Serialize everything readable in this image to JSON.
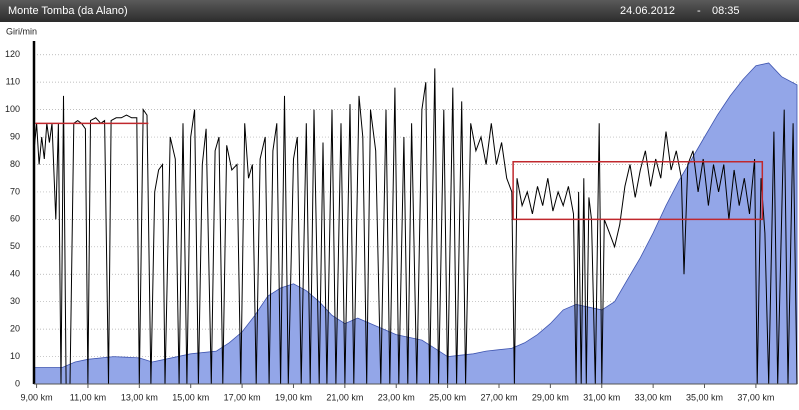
{
  "header": {
    "title": "Monte Tomba (da Alano)",
    "date": "24.06.2012",
    "separator": "-",
    "time": "08:35"
  },
  "chart_data": {
    "type": "line",
    "y_label": "Giri/min",
    "xlim": [
      8.9,
      38.6
    ],
    "ylim": [
      0,
      125
    ],
    "grid": true,
    "yticks": [
      0,
      10,
      20,
      30,
      40,
      50,
      60,
      70,
      80,
      90,
      100,
      110,
      120
    ],
    "xticks": [
      {
        "value": 9,
        "label": "9,00 km"
      },
      {
        "value": 11,
        "label": "11,00 km"
      },
      {
        "value": 13,
        "label": "13,00 km"
      },
      {
        "value": 15,
        "label": "15,00 km"
      },
      {
        "value": 17,
        "label": "17,00 km"
      },
      {
        "value": 19,
        "label": "19,00 km"
      },
      {
        "value": 21,
        "label": "21,00 km"
      },
      {
        "value": 23,
        "label": "23,00 km"
      },
      {
        "value": 25,
        "label": "25,00 km"
      },
      {
        "value": 27,
        "label": "27,00 km"
      },
      {
        "value": 29,
        "label": "29,00 km"
      },
      {
        "value": 31,
        "label": "31,00 km"
      },
      {
        "value": 33,
        "label": "33,00 km"
      },
      {
        "value": 35,
        "label": "35,00 km"
      },
      {
        "value": 37,
        "label": "37,00 km"
      }
    ],
    "series": [
      {
        "type": "area",
        "color": "#93a6e8",
        "stroke": "#3f55b0",
        "x": [
          8.9,
          10,
          10.5,
          11,
          12,
          13,
          13.5,
          14,
          15,
          16,
          16.5,
          17,
          17.5,
          18,
          18.5,
          19,
          19.5,
          20,
          20.5,
          21,
          21.5,
          22,
          22.5,
          23,
          23.5,
          24,
          24.5,
          25,
          25.5,
          26,
          26.5,
          27,
          27.5,
          28,
          28.5,
          29,
          29.5,
          30,
          30.5,
          31,
          31.5,
          32,
          32.5,
          33,
          33.5,
          34,
          34.5,
          35,
          35.5,
          36,
          36.5,
          37,
          37.5,
          38,
          38.6
        ],
        "values": [
          6,
          6,
          8,
          9,
          10,
          9.5,
          8,
          9,
          11,
          12,
          15,
          19,
          25,
          32,
          35,
          36.5,
          34,
          30,
          25,
          22,
          24,
          22,
          20,
          18,
          17,
          16,
          13,
          10,
          10.5,
          11,
          12,
          12.5,
          13,
          15,
          18,
          22,
          27,
          29,
          28,
          27,
          30,
          38,
          46,
          55,
          65,
          74,
          82,
          90,
          98,
          105,
          111,
          116,
          117,
          112,
          109
        ]
      },
      {
        "type": "line",
        "color": "#000000",
        "x": [
          8.9,
          9,
          9.1,
          9.2,
          9.3,
          9.4,
          9.5,
          9.6,
          9.75,
          9.85,
          9.95,
          10.05,
          10.15,
          10.3,
          10.45,
          10.6,
          10.75,
          10.9,
          11,
          11.1,
          11.3,
          11.5,
          11.65,
          11.8,
          11.9,
          12.1,
          12.3,
          12.5,
          12.7,
          12.9,
          13,
          13.15,
          13.3,
          13.45,
          13.6,
          13.75,
          13.9,
          14,
          14.2,
          14.4,
          14.55,
          14.7,
          14.85,
          15,
          15.15,
          15.3,
          15.45,
          15.6,
          15.8,
          15.95,
          16.1,
          16.25,
          16.4,
          16.6,
          16.8,
          16.95,
          17.1,
          17.25,
          17.4,
          17.55,
          17.7,
          17.9,
          18.05,
          18.2,
          18.35,
          18.5,
          18.65,
          18.8,
          19,
          19.15,
          19.3,
          19.5,
          19.65,
          19.8,
          20,
          20.15,
          20.3,
          20.5,
          20.65,
          20.85,
          21,
          21.2,
          21.35,
          21.55,
          21.7,
          21.85,
          22,
          22.2,
          22.4,
          22.6,
          22.75,
          22.95,
          23.1,
          23.3,
          23.45,
          23.6,
          23.8,
          24,
          24.15,
          24.3,
          24.5,
          24.65,
          24.85,
          25,
          25.2,
          25.35,
          25.55,
          25.7,
          25.9,
          26.1,
          26.3,
          26.5,
          26.7,
          26.9,
          27.1,
          27.3,
          27.5,
          27.6,
          27.7,
          27.9,
          28.1,
          28.3,
          28.5,
          28.7,
          28.9,
          29.1,
          29.3,
          29.5,
          29.7,
          29.9,
          30,
          30.1,
          30.2,
          30.3,
          30.4,
          30.5,
          30.6,
          30.75,
          30.9,
          31,
          31.1,
          31.3,
          31.5,
          31.7,
          31.9,
          32.1,
          32.3,
          32.5,
          32.7,
          32.9,
          33.1,
          33.3,
          33.5,
          33.7,
          33.9,
          34.1,
          34.2,
          34.35,
          34.55,
          34.75,
          34.95,
          35.15,
          35.35,
          35.55,
          35.75,
          35.95,
          36.15,
          36.35,
          36.55,
          36.75,
          36.95,
          37.05,
          37.2,
          37.35,
          37.5,
          37.7,
          37.85,
          38.1,
          38.25,
          38.45,
          38.6
        ],
        "values": [
          85,
          95,
          80,
          90,
          82,
          95,
          88,
          95,
          60,
          95,
          0,
          105,
          0,
          0,
          95,
          96,
          95,
          93,
          0,
          96,
          97,
          95,
          96,
          0,
          96,
          97,
          97,
          98,
          97,
          97,
          0,
          100,
          98,
          0,
          70,
          78,
          80,
          0,
          90,
          82,
          0,
          95,
          0,
          90,
          100,
          0,
          80,
          93,
          0,
          85,
          90,
          0,
          87,
          78,
          80,
          0,
          95,
          75,
          80,
          0,
          82,
          90,
          0,
          85,
          95,
          0,
          105,
          0,
          82,
          90,
          0,
          95,
          0,
          100,
          0,
          88,
          0,
          100,
          0,
          95,
          0,
          102,
          0,
          105,
          90,
          0,
          100,
          85,
          0,
          100,
          0,
          108,
          0,
          90,
          0,
          95,
          0,
          100,
          110,
          0,
          115,
          0,
          100,
          0,
          108,
          0,
          103,
          0,
          95,
          85,
          90,
          80,
          95,
          80,
          88,
          75,
          70,
          0,
          75,
          65,
          70,
          62,
          72,
          65,
          75,
          63,
          70,
          65,
          72,
          62,
          0,
          70,
          0,
          75,
          0,
          68,
          60,
          0,
          95,
          0,
          60,
          55,
          50,
          58,
          72,
          80,
          68,
          78,
          85,
          72,
          82,
          75,
          92,
          78,
          85,
          75,
          40,
          80,
          85,
          70,
          82,
          65,
          80,
          70,
          80,
          60,
          78,
          65,
          75,
          62,
          82,
          0,
          75,
          55,
          0,
          92,
          0,
          100,
          0,
          95,
          0
        ]
      }
    ],
    "reference_lines": [
      {
        "x": [
          8.95,
          13.35
        ],
        "y": 95,
        "color": "#c0282d"
      }
    ],
    "boxes": [
      {
        "x": [
          27.55,
          37.25
        ],
        "y": [
          60,
          81
        ],
        "color": "#c0282d"
      }
    ]
  }
}
